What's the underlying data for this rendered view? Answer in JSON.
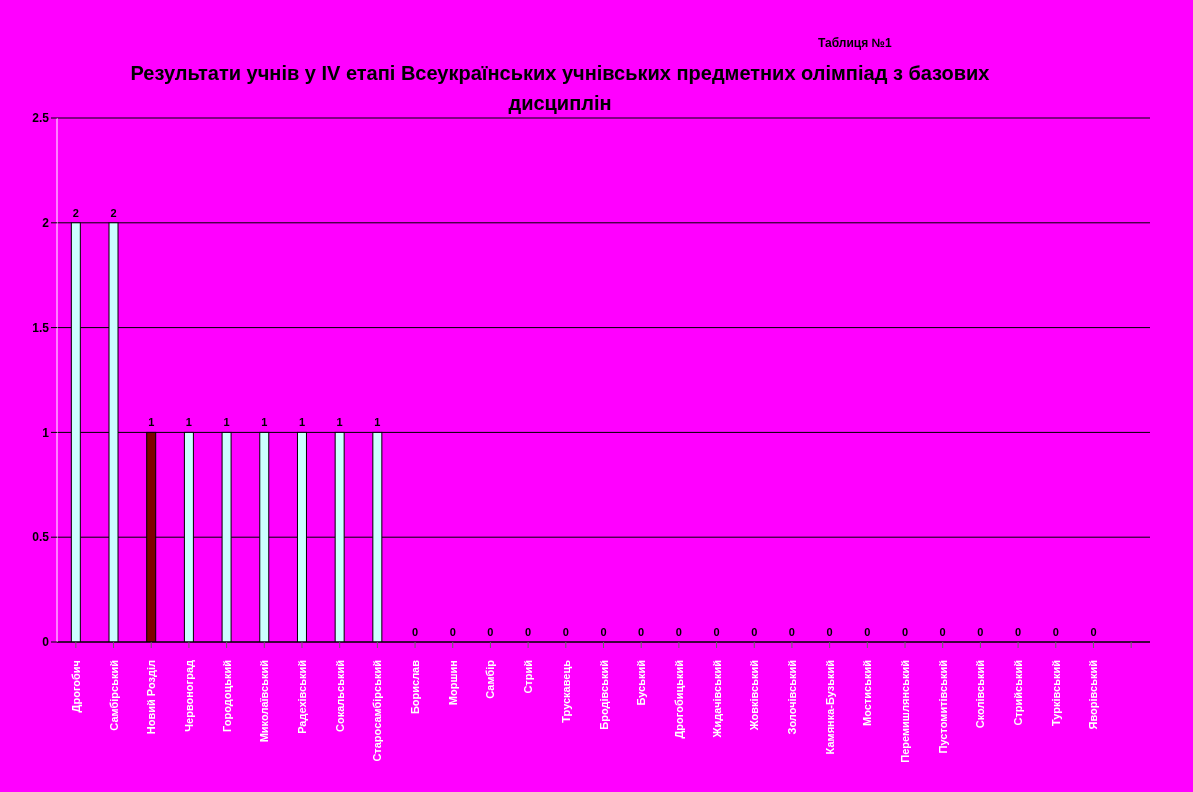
{
  "chart_data": {
    "type": "bar",
    "title": "Результати учнів у IV етапі Всеукраїнських учнівських предметних олімпіад з базових дисциплін",
    "annotations": [
      "Таблиця №1"
    ],
    "categories": [
      "Дрогобич",
      "Самбірський",
      "Новий Розділ",
      "Червоноград",
      "Городоцький",
      "Миколаївський",
      "Радехівський",
      "Сокальський",
      "Старосамбірський",
      "Борислав",
      "Моршин",
      "Самбір",
      "Стрий",
      "Трускавець",
      "Бродівський",
      "Буський",
      "Дрогобицький",
      "Жидачівський",
      "Жовківський",
      "Золочівський",
      "Камянка-Бузький",
      "Мостиський",
      "Перемишлянський",
      "Пустомитівський",
      "Сколівський",
      "Стрийський",
      "Турківський",
      "Яворівський",
      null
    ],
    "values": [
      2,
      2,
      1,
      1,
      1,
      1,
      1,
      1,
      1,
      0,
      0,
      0,
      0,
      0,
      0,
      0,
      0,
      0,
      0,
      0,
      0,
      0,
      0,
      0,
      0,
      0,
      0,
      0,
      null
    ],
    "colors": [
      "#ccffff",
      "#ccffff",
      "#800000",
      "#ccffff",
      "#ccffff",
      "#ccffff",
      "#ccffff",
      "#ccffff",
      "#ccffff",
      "#ccffff",
      "#ccffff",
      "#ccffff",
      "#ccffff",
      "#ccffff",
      "#ccffff",
      "#ccffff",
      "#ccffff",
      "#ccffff",
      "#ccffff",
      "#ccffff",
      "#ccffff",
      "#ccffff",
      "#ccffff",
      "#ccffff",
      "#ccffff",
      "#ccffff",
      "#ccffff",
      "#ccffff",
      "#ccffff"
    ],
    "ylim": [
      0,
      2.5
    ],
    "yticks": [
      0,
      0.5,
      1,
      1.5,
      2,
      2.5
    ],
    "grid": "y",
    "data_labels": true
  }
}
